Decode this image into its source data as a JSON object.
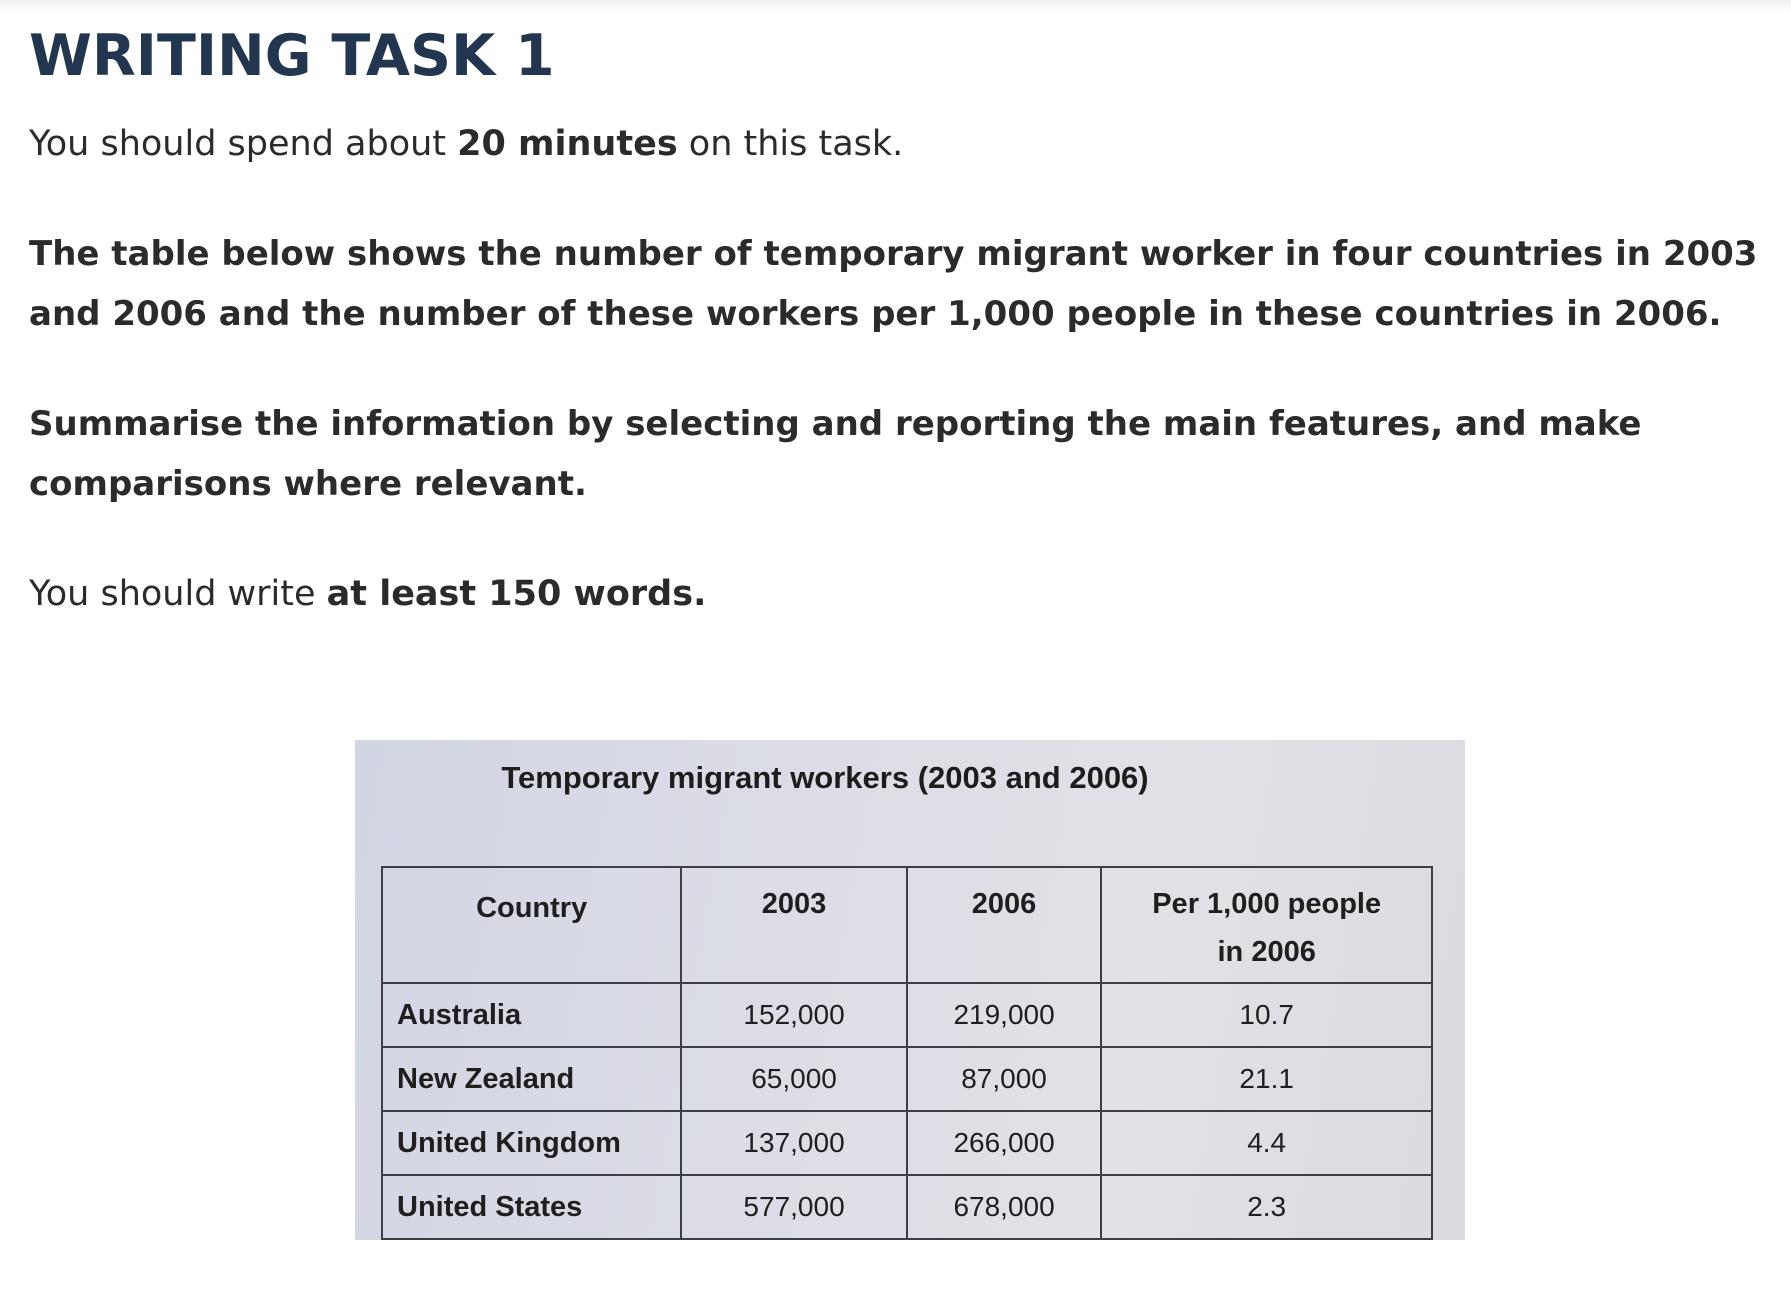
{
  "header": {
    "title": "WRITING TASK 1"
  },
  "instructions": {
    "time_pre": "You should spend about ",
    "time_bold": "20 minutes",
    "time_post": " on this task.",
    "description": "The table below shows the number of temporary migrant worker in four countries in 2003 and 2006 and the number of these workers per 1,000 people in these countries in 2006.",
    "summary": "Summarise the information by selecting and reporting the main features, and make comparisons where relevant.",
    "words_pre": "You should write ",
    "words_bold": "at least 150 words."
  },
  "chart_data": {
    "type": "table",
    "title": "Temporary migrant workers (2003 and 2006)",
    "columns": [
      "Country",
      "2003",
      "2006",
      "Per 1,000 people in 2006"
    ],
    "rows": [
      {
        "country": "Australia",
        "y2003": "152,000",
        "y2006": "219,000",
        "per1000": "10.7"
      },
      {
        "country": "New Zealand",
        "y2003": "65,000",
        "y2006": "87,000",
        "per1000": "21.1"
      },
      {
        "country": "United Kingdom",
        "y2003": "137,000",
        "y2006": "266,000",
        "per1000": "4.4"
      },
      {
        "country": "United States",
        "y2003": "577,000",
        "y2006": "678,000",
        "per1000": "2.3"
      }
    ]
  }
}
